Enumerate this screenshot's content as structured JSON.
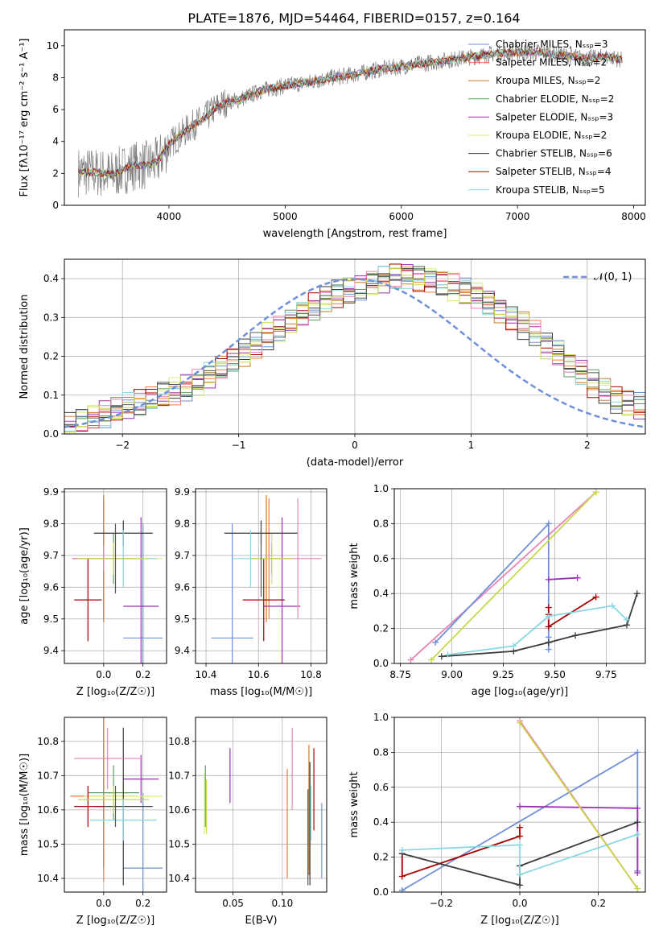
{
  "figure_title": "PLATE=1876, MJD=54464, FIBERID=0157, z=0.164",
  "model_colors": [
    "#6f8fd6",
    "#f07c3a",
    "#c97b2b",
    "#5e9e5e",
    "#9b30b4",
    "#d9ee7a",
    "#3a3a3a",
    "#a80000",
    "#88d8e0",
    "#ea82b5",
    "#c8d84a",
    "#555555"
  ],
  "chart_data": [
    {
      "id": "spectrum",
      "type": "line",
      "title": "PLATE=1876, MJD=54464, FIBERID=0157, z=0.164",
      "xlabel": "wavelength [Angstrom, rest frame]",
      "ylabel": "Flux [fλ10⁻¹⁷ erg cm⁻² s⁻¹ A⁻¹]",
      "xlim": [
        3100,
        8100
      ],
      "ylim": [
        0,
        11
      ],
      "xticks": [
        4000,
        5000,
        6000,
        7000,
        8000
      ],
      "yticks": [
        0,
        2,
        4,
        6,
        8,
        10
      ],
      "grid": false,
      "legend_position": "top-right",
      "series": [
        {
          "name": "Chabrier MILES, Nₛₛₚ=3",
          "color": "#6f8fd6"
        },
        {
          "name": "Salpeter MILES, Nₛₛₚ=2",
          "color": "#f07c3a"
        },
        {
          "name": "Kroupa MILES, Nₛₛₚ=2",
          "color": "#c97b2b"
        },
        {
          "name": "Chabrier ELODIE, Nₛₛₚ=2",
          "color": "#5e9e5e"
        },
        {
          "name": "Salpeter ELODIE, Nₛₛₚ=3",
          "color": "#9b30b4"
        },
        {
          "name": "Kroupa ELODIE, Nₛₛₚ=2",
          "color": "#d9ee7a"
        },
        {
          "name": "Chabrier STELIB, Nₛₛₚ=6",
          "color": "#3a3a3a"
        },
        {
          "name": "Salpeter STELIB, Nₛₛₚ=4",
          "color": "#a80000"
        },
        {
          "name": "Kroupa STELIB, Nₛₛₚ=5",
          "color": "#88d8e0"
        }
      ],
      "data_color": "#808080",
      "continuum": {
        "x": [
          3220,
          3400,
          3500,
          3600,
          3700,
          3800,
          3900,
          4000,
          4100,
          4200,
          4300,
          4400,
          4500,
          4600,
          4800,
          5000,
          5200,
          5400,
          5600,
          5800,
          6000,
          6200,
          6400,
          6600,
          6800,
          7000,
          7200,
          7400,
          7600,
          7800,
          7900
        ],
        "y": [
          2.1,
          2.05,
          1.9,
          2.2,
          2.5,
          2.5,
          2.7,
          3.8,
          4.4,
          5.0,
          5.4,
          6.1,
          6.5,
          6.6,
          7.2,
          7.5,
          7.7,
          8.0,
          8.2,
          8.5,
          8.7,
          8.9,
          9.1,
          9.3,
          9.5,
          9.6,
          9.6,
          9.4,
          9.2,
          9.3,
          9.1
        ]
      }
    },
    {
      "id": "residuals",
      "type": "step",
      "xlabel": "(data-model)/error",
      "ylabel": "Normed distribution",
      "xlim": [
        -2.5,
        2.5
      ],
      "ylim": [
        0,
        0.45
      ],
      "xticks": [
        -2,
        -1,
        0,
        1,
        2
      ],
      "yticks": [
        0.0,
        0.1,
        0.2,
        0.3,
        0.4
      ],
      "grid": true,
      "legend_position": "top-right",
      "legend_label": "𝒩(0, 1)",
      "gaussian": {
        "mean": 0,
        "sigma": 1,
        "color": "#6f8fd6"
      },
      "bin_width": 0.1,
      "hist_base": [
        0.02,
        0.03,
        0.04,
        0.05,
        0.06,
        0.07,
        0.08,
        0.09,
        0.1,
        0.11,
        0.12,
        0.13,
        0.15,
        0.17,
        0.19,
        0.21,
        0.23,
        0.25,
        0.27,
        0.29,
        0.31,
        0.33,
        0.35,
        0.36,
        0.37,
        0.38,
        0.39,
        0.4,
        0.41,
        0.41,
        0.4,
        0.4,
        0.39,
        0.38,
        0.37,
        0.36,
        0.34,
        0.32,
        0.3,
        0.28,
        0.26,
        0.23,
        0.21,
        0.18,
        0.16,
        0.13,
        0.11,
        0.09,
        0.08,
        0.07
      ]
    },
    {
      "id": "age_vs_Z",
      "type": "errorbar",
      "xlabel": "Z [log₁₀(Z/Z☉)]",
      "ylabel": "age  [log₁₀(age/yr)]",
      "xlim": [
        -0.2,
        0.32
      ],
      "ylim": [
        9.36,
        9.91
      ],
      "xticks": [
        0.0,
        0.2
      ],
      "yticks": [
        9.4,
        9.5,
        9.6,
        9.7,
        9.8,
        9.9
      ],
      "grid": true,
      "points": [
        {
          "x": 0.2,
          "xerr": 0.1,
          "y": 9.44,
          "yerr": 0.36,
          "color": "#6f8fd6"
        },
        {
          "x": 0.0,
          "xerr": 0.16,
          "y": 9.69,
          "yerr": 0.19,
          "color": "#f07c3a"
        },
        {
          "x": 0.0,
          "xerr": 0.0,
          "y": 9.69,
          "yerr": 0.2,
          "color": "#c97b2b"
        },
        {
          "x": 0.05,
          "xerr": 0.15,
          "y": 9.69,
          "yerr": 0.08,
          "color": "#5e9e5e"
        },
        {
          "x": 0.19,
          "xerr": 0.09,
          "y": 9.54,
          "yerr": 0.28,
          "color": "#9b30b4"
        },
        {
          "x": 0.1,
          "xerr": 0.2,
          "y": 9.69,
          "yerr": 0.08,
          "color": "#d9ee7a"
        },
        {
          "x": 0.1,
          "xerr": 0.15,
          "y": 9.77,
          "yerr": 0.04,
          "color": "#3a3a3a"
        },
        {
          "x": -0.08,
          "xerr": 0.07,
          "y": 9.56,
          "yerr": 0.13,
          "color": "#a80000"
        },
        {
          "x": 0.1,
          "xerr": 0.17,
          "y": 9.69,
          "yerr": 0.09,
          "color": "#88d8e0"
        },
        {
          "x": 0.0,
          "xerr": 0.16,
          "y": 9.69,
          "yerr": 0.04,
          "color": "#ea82b5"
        },
        {
          "x": 0.05,
          "xerr": 0.18,
          "y": 9.69,
          "yerr": 0.05,
          "color": "#c8d84a"
        },
        {
          "x": 0.06,
          "xerr": 0.0,
          "y": 9.69,
          "yerr": 0.11,
          "color": "#555555"
        }
      ]
    },
    {
      "id": "age_vs_mass",
      "type": "errorbar",
      "xlabel": "mass [log₁₀(M/M☉)]",
      "ylabel": "",
      "xlim": [
        10.36,
        10.86
      ],
      "ylim": [
        9.36,
        9.91
      ],
      "xticks": [
        10.4,
        10.6,
        10.8
      ],
      "yticks": [
        9.4,
        9.5,
        9.6,
        9.7,
        9.8,
        9.9
      ],
      "grid": true,
      "points": [
        {
          "x": 10.5,
          "xerr": 0.08,
          "y": 9.44,
          "yerr": 0.36,
          "color": "#6f8fd6"
        },
        {
          "x": 10.64,
          "xerr": 0.06,
          "y": 9.69,
          "yerr": 0.19,
          "color": "#f07c3a"
        },
        {
          "x": 10.63,
          "xerr": 0.0,
          "y": 9.69,
          "yerr": 0.2,
          "color": "#c97b2b"
        },
        {
          "x": 10.65,
          "xerr": 0.05,
          "y": 9.69,
          "yerr": 0.08,
          "color": "#5e9e5e"
        },
        {
          "x": 10.69,
          "xerr": 0.07,
          "y": 9.54,
          "yerr": 0.28,
          "color": "#9b30b4"
        },
        {
          "x": 10.65,
          "xerr": 0.08,
          "y": 9.69,
          "yerr": 0.08,
          "color": "#d9ee7a"
        },
        {
          "x": 10.61,
          "xerr": 0.14,
          "y": 9.77,
          "yerr": 0.04,
          "color": "#3a3a3a"
        },
        {
          "x": 10.62,
          "xerr": 0.08,
          "y": 9.56,
          "yerr": 0.13,
          "color": "#a80000"
        },
        {
          "x": 10.57,
          "xerr": 0.07,
          "y": 9.69,
          "yerr": 0.09,
          "color": "#88d8e0"
        },
        {
          "x": 10.75,
          "xerr": 0.09,
          "y": 9.69,
          "yerr": 0.19,
          "color": "#ea82b5"
        },
        {
          "x": 10.65,
          "xerr": 0.08,
          "y": 9.69,
          "yerr": 0.05,
          "color": "#c8d84a"
        },
        {
          "x": 10.61,
          "xerr": 0.0,
          "y": 9.69,
          "yerr": 0.12,
          "color": "#555555"
        }
      ]
    },
    {
      "id": "weight_vs_age",
      "type": "line",
      "xlabel": "age  [log₁₀(age/yr)]",
      "ylabel": "mass weight",
      "xlim": [
        8.72,
        9.94
      ],
      "ylim": [
        0,
        1
      ],
      "xticks": [
        8.75,
        9.0,
        9.25,
        9.5,
        9.75
      ],
      "yticks": [
        0.0,
        0.2,
        0.4,
        0.6,
        0.8,
        1.0
      ],
      "grid": true,
      "series": [
        {
          "color": "#ea82b5",
          "x": [
            8.8,
            9.7
          ],
          "y": [
            0.02,
            0.98
          ]
        },
        {
          "color": "#6f8fd6",
          "x": [
            8.92,
            9.47,
            9.47,
            9.47
          ],
          "y": [
            0.12,
            0.8,
            0.15,
            0.08
          ]
        },
        {
          "color": "#9b30b4",
          "x": [
            9.47,
            9.61
          ],
          "y": [
            0.48,
            0.49
          ]
        },
        {
          "color": "#a80000",
          "x": [
            9.47,
            9.47,
            9.47,
            9.7
          ],
          "y": [
            0.32,
            0.28,
            0.21,
            0.38
          ]
        },
        {
          "color": "#3a3a3a",
          "x": [
            8.95,
            9.3,
            9.47,
            9.6,
            9.85,
            9.9
          ],
          "y": [
            0.04,
            0.07,
            0.12,
            0.16,
            0.22,
            0.4
          ]
        },
        {
          "color": "#88d8e0",
          "x": [
            8.98,
            9.3,
            9.47,
            9.78,
            9.85
          ],
          "y": [
            0.05,
            0.1,
            0.27,
            0.33,
            0.25
          ]
        },
        {
          "color": "#c8d84a",
          "x": [
            8.9,
            9.7
          ],
          "y": [
            0.02,
            0.98
          ]
        }
      ]
    },
    {
      "id": "mass_vs_Z",
      "type": "errorbar",
      "xlabel": "Z [log₁₀(Z/Z☉)]",
      "ylabel": "mass [log₁₀(M/M☉)]",
      "xlim": [
        -0.2,
        0.32
      ],
      "ylim": [
        10.36,
        10.87
      ],
      "xticks": [
        0.0,
        0.2
      ],
      "yticks": [
        10.4,
        10.5,
        10.6,
        10.7,
        10.8
      ],
      "grid": true,
      "points": [
        {
          "x": 0.2,
          "xerr": 0.1,
          "y": 10.43,
          "yerr": 0.22,
          "color": "#6f8fd6"
        },
        {
          "x": 0.0,
          "xerr": 0.17,
          "y": 10.64,
          "yerr": 0.25,
          "color": "#f07c3a"
        },
        {
          "x": 0.0,
          "xerr": 0.0,
          "y": 10.65,
          "yerr": 0.22,
          "color": "#c97b2b"
        },
        {
          "x": 0.05,
          "xerr": 0.13,
          "y": 10.65,
          "yerr": 0.08,
          "color": "#5e9e5e"
        },
        {
          "x": 0.19,
          "xerr": 0.09,
          "y": 10.69,
          "yerr": 0.07,
          "color": "#9b30b4"
        },
        {
          "x": 0.1,
          "xerr": 0.2,
          "y": 10.64,
          "yerr": 0.04,
          "color": "#d9ee7a"
        },
        {
          "x": 0.1,
          "xerr": 0.15,
          "y": 10.61,
          "yerr": 0.23,
          "color": "#3a3a3a"
        },
        {
          "x": -0.08,
          "xerr": 0.07,
          "y": 10.61,
          "yerr": 0.06,
          "color": "#a80000"
        },
        {
          "x": 0.1,
          "xerr": 0.17,
          "y": 10.57,
          "yerr": 0.06,
          "color": "#88d8e0"
        },
        {
          "x": 0.02,
          "xerr": 0.17,
          "y": 10.75,
          "yerr": 0.09,
          "color": "#ea82b5"
        },
        {
          "x": 0.05,
          "xerr": 0.18,
          "y": 10.63,
          "yerr": 0.04,
          "color": "#c8d84a"
        },
        {
          "x": 0.06,
          "xerr": 0.0,
          "y": 10.61,
          "yerr": 0.06,
          "color": "#555555"
        }
      ]
    },
    {
      "id": "mass_vs_EBV",
      "type": "errorbar",
      "xlabel": "E(B-V)",
      "ylabel": "",
      "xlim": [
        0.012,
        0.145
      ],
      "ylim": [
        10.36,
        10.87
      ],
      "xticks": [
        0.05,
        0.1
      ],
      "yticks": [
        10.4,
        10.5,
        10.6,
        10.7,
        10.8
      ],
      "grid": true,
      "points": [
        {
          "x": 0.14,
          "xerr": 0.0,
          "y": 10.51,
          "yerr": 0.11,
          "color": "#6f8fd6"
        },
        {
          "x": 0.105,
          "xerr": 0.0,
          "y": 10.56,
          "yerr": 0.16,
          "color": "#f07c3a"
        },
        {
          "x": 0.127,
          "xerr": 0.0,
          "y": 10.6,
          "yerr": 0.19,
          "color": "#c97b2b"
        },
        {
          "x": 0.022,
          "xerr": 0.0,
          "y": 10.64,
          "yerr": 0.09,
          "color": "#5e9e5e"
        },
        {
          "x": 0.047,
          "xerr": 0.0,
          "y": 10.7,
          "yerr": 0.08,
          "color": "#9b30b4"
        },
        {
          "x": 0.021,
          "xerr": 0.0,
          "y": 10.62,
          "yerr": 0.09,
          "color": "#d9ee7a"
        },
        {
          "x": 0.128,
          "xerr": 0.0,
          "y": 10.56,
          "yerr": 0.18,
          "color": "#3a3a3a"
        },
        {
          "x": 0.132,
          "xerr": 0.0,
          "y": 10.66,
          "yerr": 0.12,
          "color": "#a80000"
        },
        {
          "x": 0.129,
          "xerr": 0.0,
          "y": 10.59,
          "yerr": 0.08,
          "color": "#88d8e0"
        },
        {
          "x": 0.11,
          "xerr": 0.0,
          "y": 10.72,
          "yerr": 0.12,
          "color": "#ea82b5"
        },
        {
          "x": 0.023,
          "xerr": 0.0,
          "y": 10.61,
          "yerr": 0.08,
          "color": "#c8d84a"
        },
        {
          "x": 0.126,
          "xerr": 0.0,
          "y": 10.52,
          "yerr": 0.14,
          "color": "#555555"
        }
      ]
    },
    {
      "id": "weight_vs_Z",
      "type": "line",
      "xlabel": "Z [log₁₀(Z/Z☉)]",
      "ylabel": "mass weight",
      "xlim": [
        -0.32,
        0.32
      ],
      "ylim": [
        0,
        1
      ],
      "xticks": [
        -0.2,
        0.0,
        0.2
      ],
      "yticks": [
        0.0,
        0.2,
        0.4,
        0.6,
        0.8,
        1.0
      ],
      "grid": true,
      "series": [
        {
          "color": "#6f8fd6",
          "x": [
            -0.3,
            0.3,
            0.3
          ],
          "y": [
            0.01,
            0.8,
            0.12
          ]
        },
        {
          "color": "#9b30b4",
          "x": [
            0.0,
            0.3,
            0.3
          ],
          "y": [
            0.49,
            0.48,
            0.11
          ]
        },
        {
          "color": "#a80000",
          "x": [
            -0.3,
            -0.3,
            0.0,
            0.0
          ],
          "y": [
            0.22,
            0.09,
            0.32,
            0.37
          ]
        },
        {
          "color": "#3a3a3a",
          "x": [
            -0.3,
            0.0,
            0.0,
            0.3
          ],
          "y": [
            0.22,
            0.04,
            0.15,
            0.4
          ]
        },
        {
          "color": "#88d8e0",
          "x": [
            -0.3,
            0.0,
            0.0,
            0.3
          ],
          "y": [
            0.24,
            0.27,
            0.1,
            0.33
          ]
        },
        {
          "color": "#ea82b5",
          "x": [
            0.0,
            0.3
          ],
          "y": [
            0.98,
            0.02
          ]
        },
        {
          "color": "#c8d84a",
          "x": [
            0.0,
            0.3
          ],
          "y": [
            0.97,
            0.02
          ]
        }
      ]
    }
  ]
}
